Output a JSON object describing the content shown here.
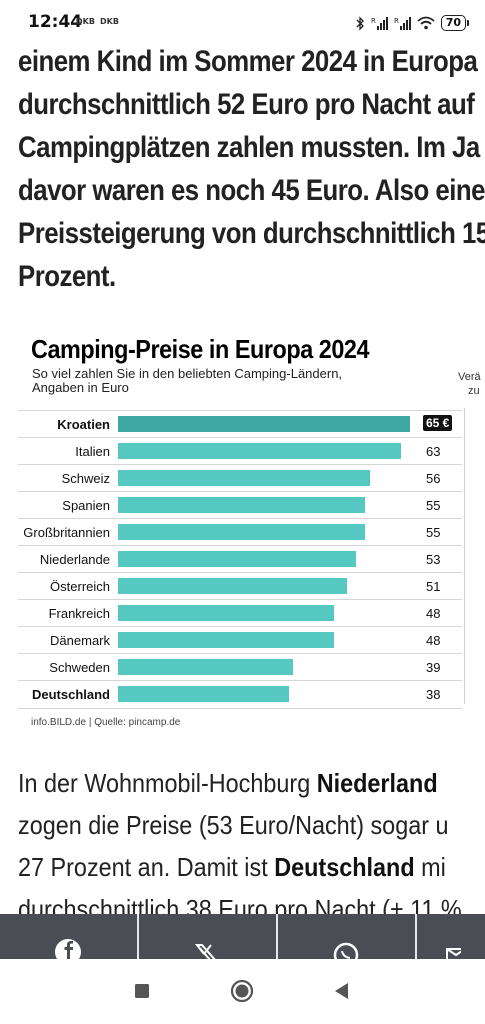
{
  "status_bar": {
    "time": "12:44",
    "operator1": "DKB",
    "operator2": "DKB",
    "battery": "70"
  },
  "article": {
    "paragraph1_lines": [
      "einem Kind im Sommer 2024 in Europa",
      "durchschnittlich 52 Euro pro Nacht auf",
      "Campingplätzen zahlen mussten. Im Ja",
      "davor waren es noch 45 Euro. Also eine",
      "Preissteigerung von durchschnittlich 15",
      "Prozent."
    ],
    "paragraph2": {
      "line1_a": "In der Wohnmobil-Hochburg ",
      "line1_b": "Niederland",
      "line2": "zogen die Preise (53 Euro/Nacht) sogar u",
      "line3_a": "27 Prozent an. Damit ist ",
      "line3_b": "Deutschland",
      "line3_c": " mi",
      "line4": "durchschnittlich 38 Euro pro Nacht (+ 11 %"
    }
  },
  "chart_data": {
    "type": "bar",
    "title": "Camping-Preise in Europa 2024",
    "subtitle_line1": "So viel zahlen Sie in den beliebten Camping-Ländern,",
    "subtitle_line2": "Angaben in Euro",
    "side_note_line1": "Verä",
    "side_note_line2": "zu",
    "categories": [
      "Kroatien",
      "Italien",
      "Schweiz",
      "Spanien",
      "Großbritannien",
      "Niederlande",
      "Österreich",
      "Frankreich",
      "Dänemark",
      "Schweden",
      "Deutschland"
    ],
    "values": [
      65,
      63,
      56,
      55,
      55,
      53,
      51,
      48,
      48,
      39,
      38
    ],
    "value_labels": [
      "65 €",
      "63",
      "56",
      "55",
      "55",
      "53",
      "51",
      "48",
      "48",
      "39",
      "38"
    ],
    "bold_categories": [
      "Kroatien",
      "Deutschland"
    ],
    "highlight_index": 0,
    "xlim": [
      0,
      69
    ],
    "colors": {
      "bar": "#54c8c1",
      "highlight": "#3ea9a2",
      "badge": "#111111"
    },
    "footer": "info.BILD.de | Quelle: pincamp.de"
  },
  "share_bar": {
    "items": [
      "facebook-icon",
      "x-icon",
      "whatsapp-icon",
      "email-icon"
    ],
    "background": "#4a4e54"
  },
  "nav_bar": {
    "items": [
      "recents-button",
      "home-button",
      "back-button"
    ]
  }
}
